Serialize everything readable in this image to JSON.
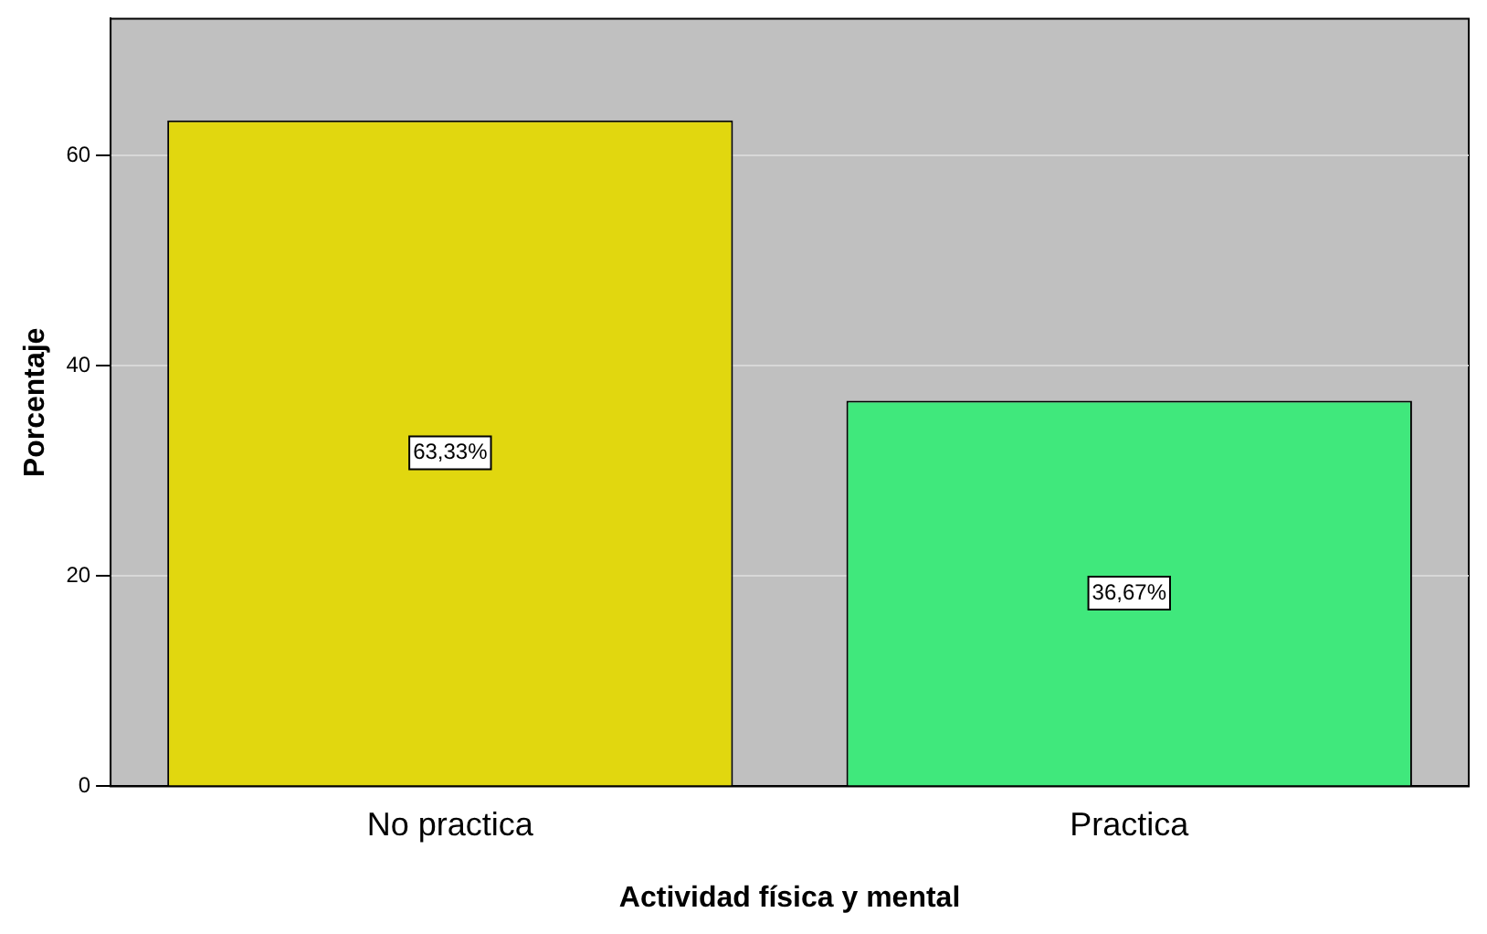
{
  "chart_data": {
    "type": "bar",
    "xlabel": "Actividad física y mental",
    "ylabel": "Porcentaje",
    "categories": [
      "No practica",
      "Practica"
    ],
    "values": [
      63.33,
      36.67
    ],
    "colors": [
      "#e1d70f",
      "#40e87c"
    ],
    "value_labels": [
      "63,33%",
      "36,67%"
    ],
    "ylim": [
      0,
      73
    ],
    "yticks": [
      0,
      20,
      40,
      60
    ],
    "grid": "y"
  }
}
